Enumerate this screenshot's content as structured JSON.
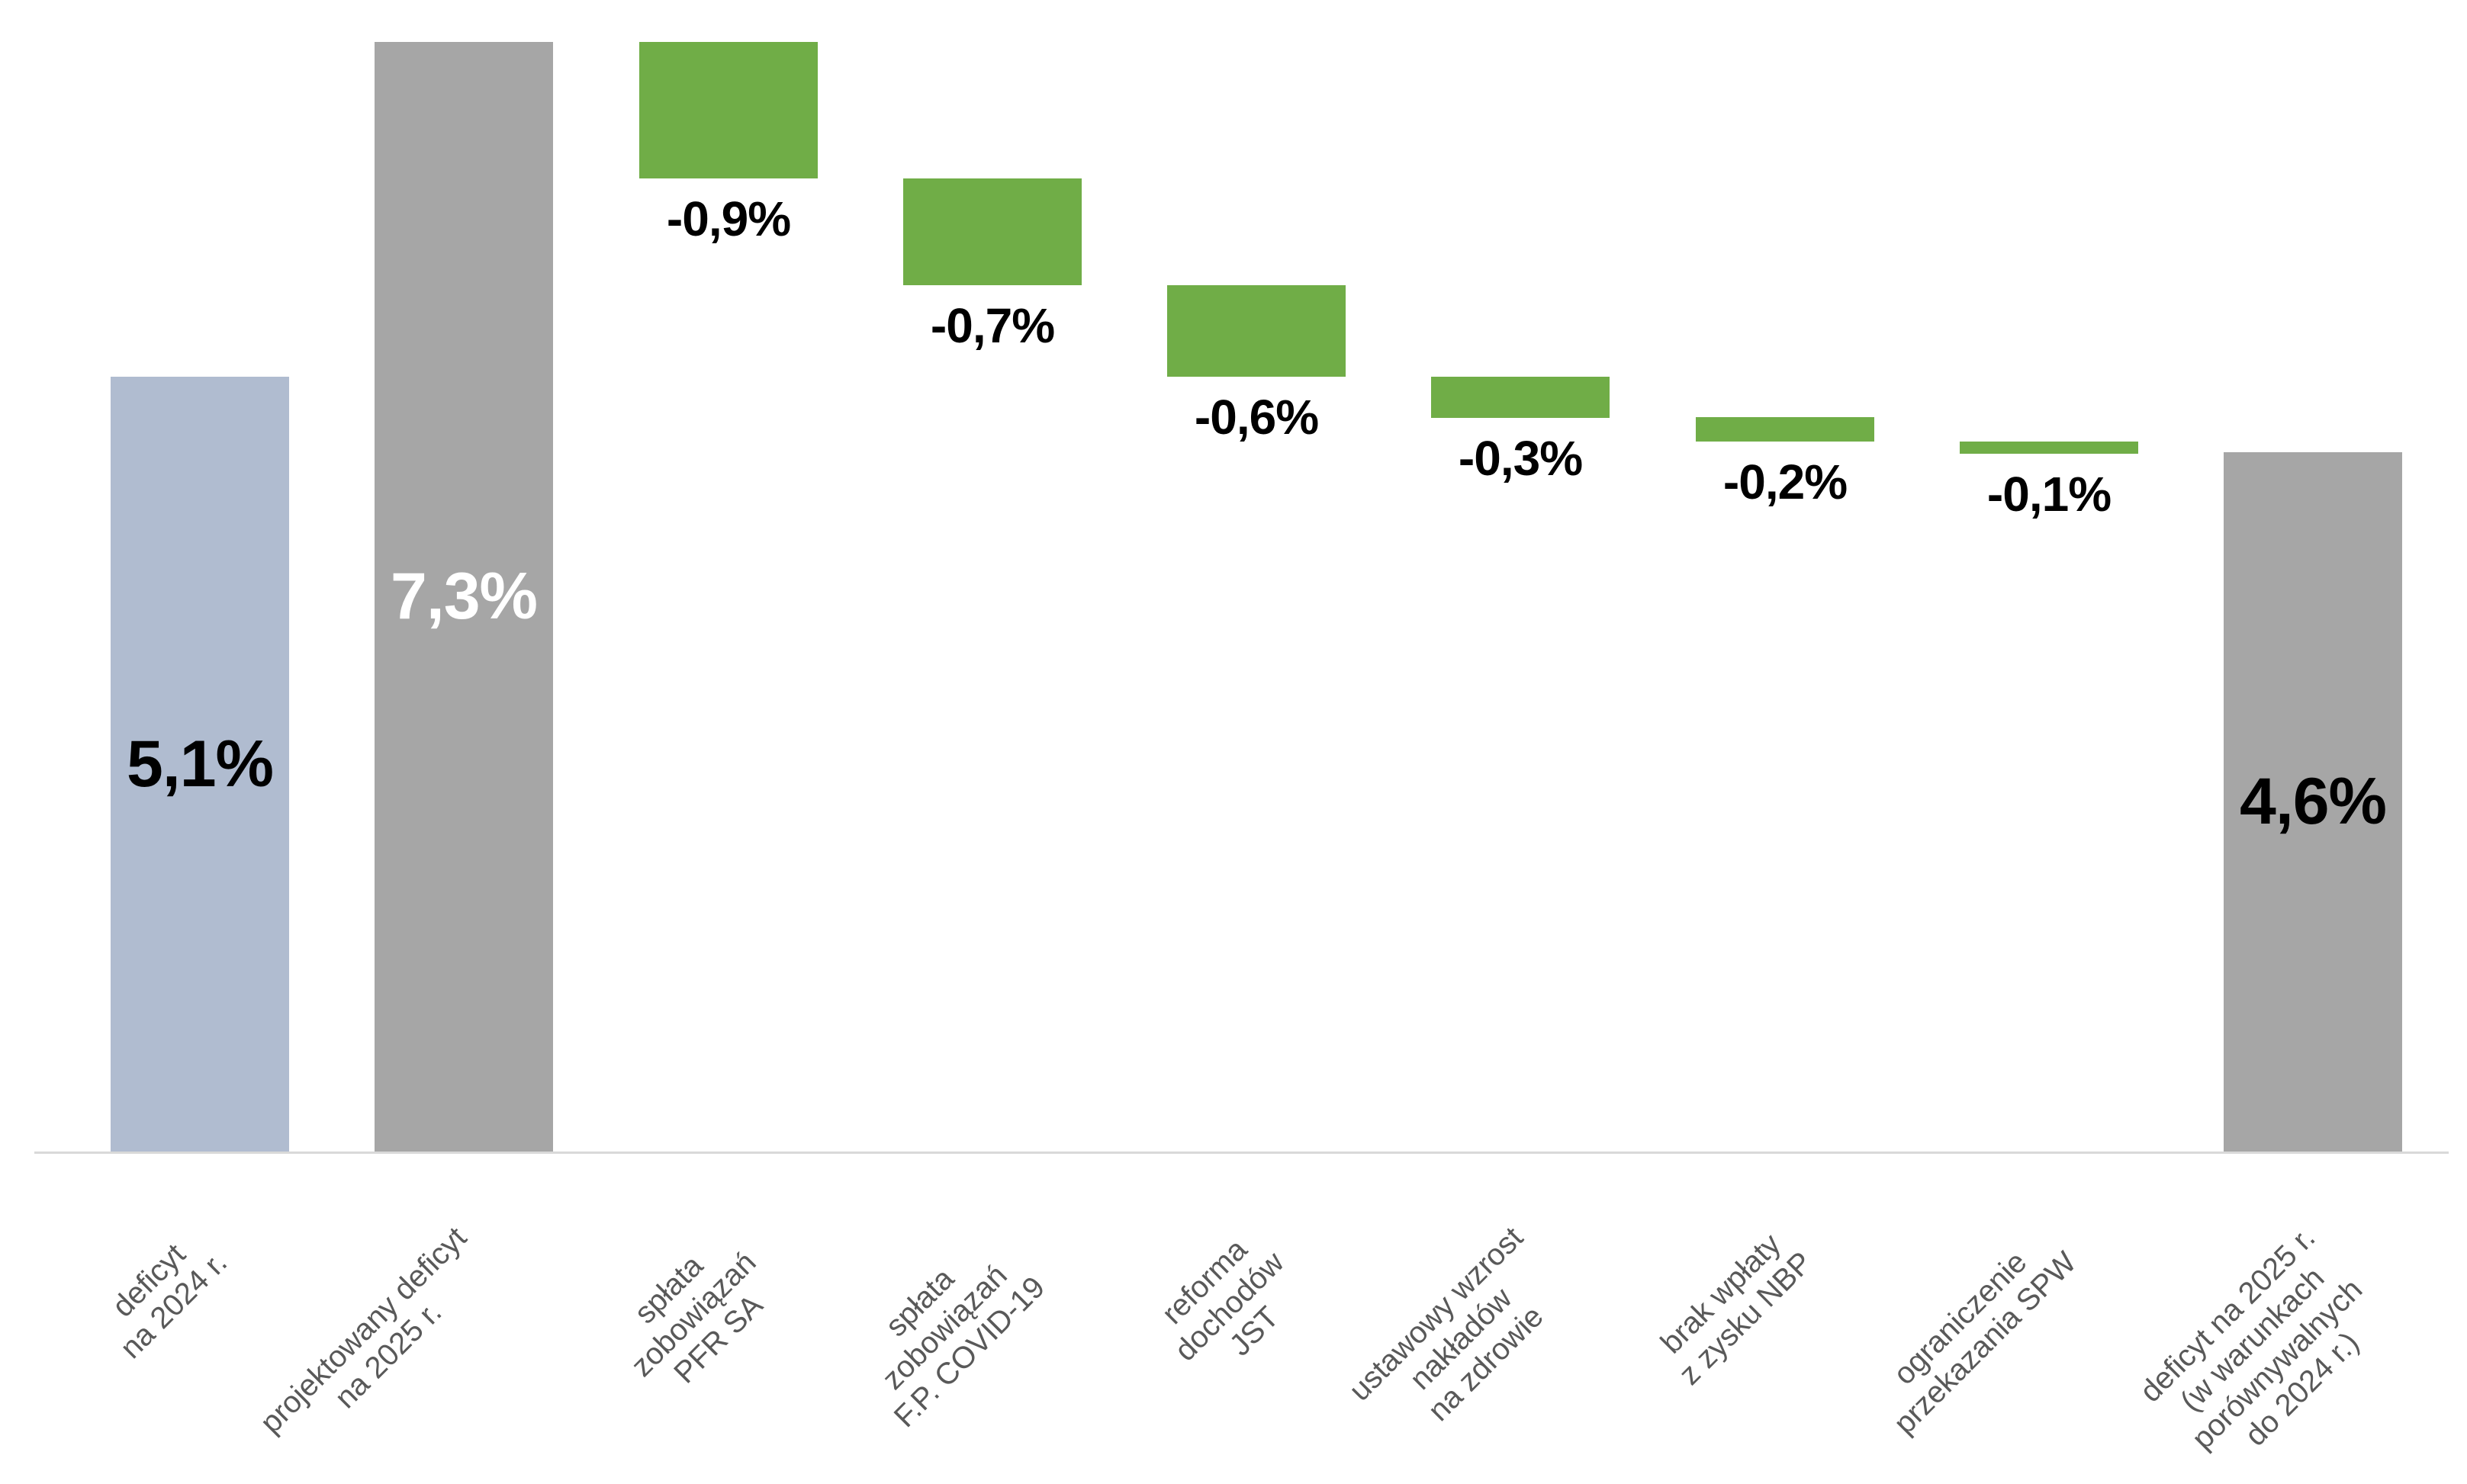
{
  "page": {
    "background": "#FFFFFF"
  },
  "chart_data": {
    "type": "bar",
    "subtype": "waterfall",
    "title": "",
    "orientation": "vertical",
    "legend": "none",
    "y_axis": {
      "visible": false,
      "unit": "%",
      "implied_range": [
        0,
        7.6
      ],
      "gridlines": false
    },
    "x_axis": {
      "line_color": "#D9D9D9",
      "label_color": "#595959",
      "label_rotation_deg": 45
    },
    "colors": {
      "start_bar": "#B0BCD0",
      "total_bar": "#A6A6A6",
      "decrease_bar": "#70AD47"
    },
    "categories": [
      "deficyt na 2024 r.",
      "projektowany deficyt na 2025 r.",
      "spłata zobowiązań PFR SA",
      "spłata zobowiązań F.P. COVID-19",
      "reforma dochodów JST",
      "ustawowy wzrost nakładów na zdrowie",
      "brak wpłaty z zysku NBP",
      "ograniczenie przekazania SPW",
      "deficyt na 2025 r. (w warunkach porównywalnych do 2024 r.)"
    ],
    "bars": [
      {
        "slug": "deficyt-2024",
        "label_lines": [
          "deficyt",
          "na 2024 r."
        ],
        "kind": "absolute",
        "color": "start_bar",
        "value": 5.1,
        "plot_from": 0,
        "plot_to": 5.1,
        "value_label": "5,1%",
        "value_label_color": "#000000",
        "value_label_position": "inside-center"
      },
      {
        "slug": "projektowany-deficyt-2025",
        "label_lines": [
          "projektowany deficyt",
          "na 2025 r."
        ],
        "kind": "absolute",
        "color": "total_bar",
        "value": 7.3,
        "plot_from": 0,
        "plot_to": 7.3,
        "value_label": "7,3%",
        "value_label_color": "#FFFFFF",
        "value_label_position": "inside-center"
      },
      {
        "slug": "splata-zobowiazan-pfr-sa",
        "label_lines": [
          "spłata",
          "zobowiązań",
          "PFR SA"
        ],
        "kind": "decrease",
        "color": "decrease_bar",
        "value": -0.9,
        "plot_from": 7.3,
        "plot_to": 6.4,
        "value_label": "-0,9%",
        "value_label_color": "#000000",
        "value_label_position": "below"
      },
      {
        "slug": "splata-zobowiazan-fp-covid-19",
        "label_lines": [
          "spłata",
          "zobowiązań",
          "F.P. COVID-19"
        ],
        "kind": "decrease",
        "color": "decrease_bar",
        "value": -0.7,
        "plot_from": 6.4,
        "plot_to": 5.7,
        "value_label": "-0,7%",
        "value_label_color": "#000000",
        "value_label_position": "below"
      },
      {
        "slug": "reforma-dochodow-jst",
        "label_lines": [
          "reforma",
          "dochodów",
          "JST"
        ],
        "kind": "decrease",
        "color": "decrease_bar",
        "value": -0.6,
        "plot_from": 5.7,
        "plot_to": 5.1,
        "value_label": "-0,6%",
        "value_label_color": "#000000",
        "value_label_position": "below"
      },
      {
        "slug": "ustawowy-wzrost-nakladow-na-zdrowie",
        "label_lines": [
          "ustawowy wzrost",
          "nakładów",
          "na zdrowie"
        ],
        "kind": "decrease",
        "color": "decrease_bar",
        "value": -0.3,
        "plot_from": 5.1,
        "plot_to": 4.83,
        "value_label": "-0,3%",
        "value_label_color": "#000000",
        "value_label_position": "below"
      },
      {
        "slug": "brak-wplaty-z-zysku-nbp",
        "label_lines": [
          "brak wpłaty",
          "z zysku NBP"
        ],
        "kind": "decrease",
        "color": "decrease_bar",
        "value": -0.2,
        "plot_from": 4.83,
        "plot_to": 4.67,
        "value_label": "-0,2%",
        "value_label_color": "#000000",
        "value_label_position": "below"
      },
      {
        "slug": "ograniczenie-przekazania-spw",
        "label_lines": [
          "ograniczenie",
          "przekazania SPW"
        ],
        "kind": "decrease",
        "color": "decrease_bar",
        "value": -0.1,
        "plot_from": 4.67,
        "plot_to": 4.59,
        "value_label": "-0,1%",
        "value_label_color": "#000000",
        "value_label_position": "below"
      },
      {
        "slug": "deficyt-2025-porownywalny",
        "label_lines": [
          "deficyt na 2025 r.",
          "(w warunkach",
          "porównywalnych",
          "do 2024 r.)"
        ],
        "kind": "absolute",
        "color": "total_bar",
        "value": 4.6,
        "plot_from": 0,
        "plot_to": 4.6,
        "value_label": "4,6%",
        "value_label_color": "#000000",
        "value_label_position": "inside-center"
      }
    ]
  }
}
